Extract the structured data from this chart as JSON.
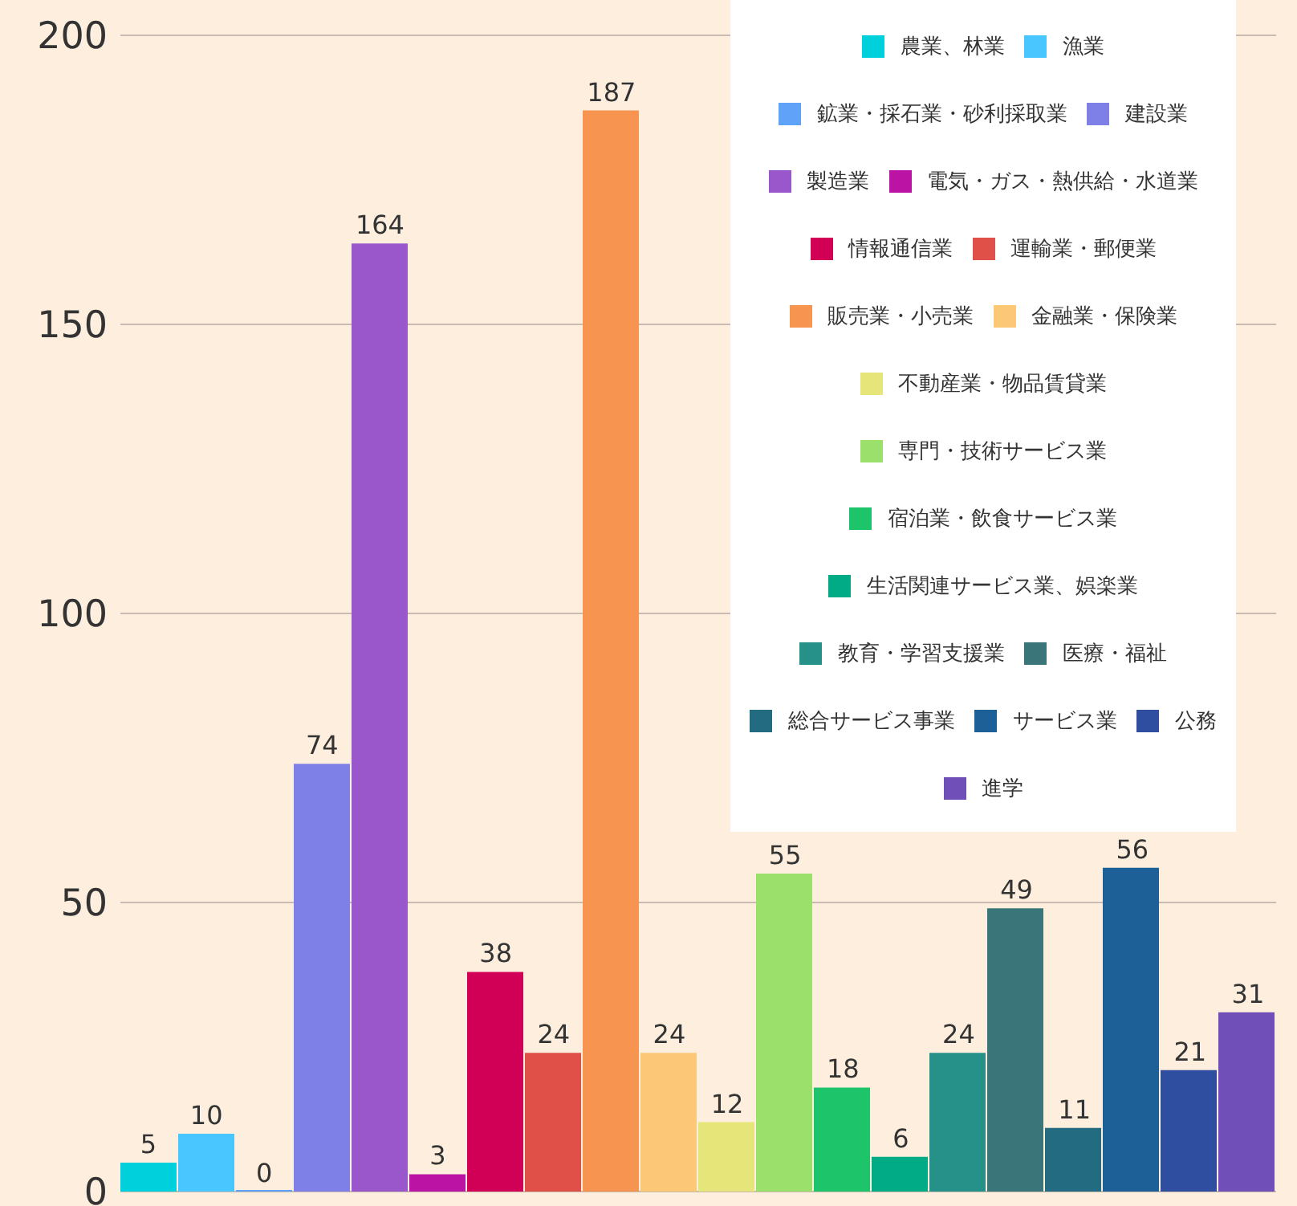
{
  "chart_data": {
    "type": "bar",
    "categories": [
      null
    ],
    "series": [
      {
        "name": "農業、林業",
        "color": "#00cfdc",
        "values": [
          5
        ]
      },
      {
        "name": "漁業",
        "color": "#48c6ff",
        "values": [
          10
        ]
      },
      {
        "name": "鉱業・採石業・砂利採取業",
        "color": "#5ea3f7",
        "values": [
          0
        ]
      },
      {
        "name": "建設業",
        "color": "#7f7fe8",
        "values": [
          74
        ]
      },
      {
        "name": "製造業",
        "color": "#9a57cc",
        "values": [
          164
        ]
      },
      {
        "name": "電気・ガス・熱供給・水道業",
        "color": "#bb14a5",
        "values": [
          3
        ]
      },
      {
        "name": "情報通信業",
        "color": "#d10056",
        "values": [
          38
        ]
      },
      {
        "name": "運輸業・郵便業",
        "color": "#e05048",
        "values": [
          24
        ]
      },
      {
        "name": "販売業・小売業",
        "color": "#f79550",
        "values": [
          187
        ]
      },
      {
        "name": "金融業・保険業",
        "color": "#fdc876",
        "values": [
          24
        ]
      },
      {
        "name": "不動産業・物品賃貸業",
        "color": "#e6e57a",
        "values": [
          12
        ]
      },
      {
        "name": "専門・技術サービス業",
        "color": "#9be06b",
        "values": [
          55
        ]
      },
      {
        "name": "宿泊業・飲食サービス業",
        "color": "#1ec46a",
        "values": [
          18
        ]
      },
      {
        "name": "生活関連サービス業、娯楽業",
        "color": "#00ab86",
        "values": [
          6
        ]
      },
      {
        "name": "教育・学習支援業",
        "color": "#259188",
        "values": [
          24
        ]
      },
      {
        "name": "医療・福祉",
        "color": "#3a7679",
        "values": [
          49
        ]
      },
      {
        "name": "総合サービス事業",
        "color": "#236b80",
        "values": [
          11
        ]
      },
      {
        "name": "サービス業",
        "color": "#1d6098",
        "values": [
          56
        ]
      },
      {
        "name": "公務",
        "color": "#2f4e9f",
        "values": [
          21
        ]
      },
      {
        "name": "進学",
        "color": "#7050b8",
        "values": [
          31
        ]
      }
    ],
    "ylim": [
      0,
      200
    ],
    "yticks": [
      0,
      50,
      100,
      150,
      200
    ],
    "grid": "y",
    "legend": "top right",
    "tick_labels": "y",
    "data_labels": true
  }
}
